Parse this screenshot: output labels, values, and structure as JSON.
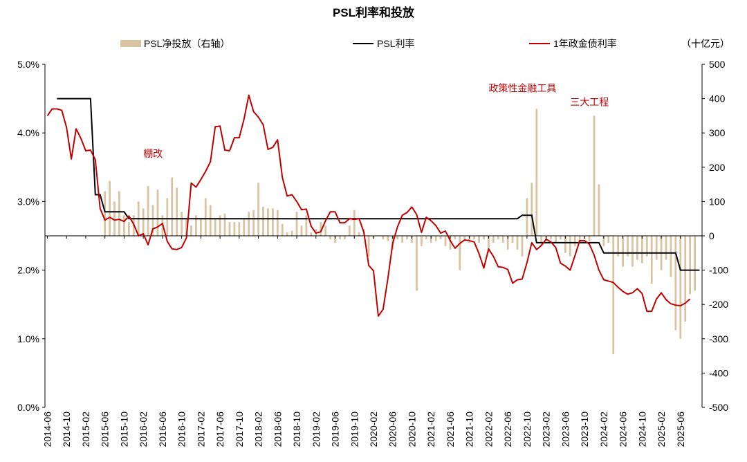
{
  "chart_data": {
    "type": "bar+line",
    "title": "PSL利率和投放",
    "unit_right": "（十亿元）",
    "legend": [
      {
        "key": "bars",
        "label": "PSL净投放（右轴）",
        "color": "#d9c3a1"
      },
      {
        "key": "psl_rate",
        "label": "PSL利率",
        "color": "#000000"
      },
      {
        "key": "bond_rate",
        "label": "1年政金债利率",
        "color": "#c00000"
      }
    ],
    "left_axis": {
      "min": 0,
      "max": 5,
      "ticks": [
        "0.0%",
        "1.0%",
        "2.0%",
        "3.0%",
        "4.0%",
        "5.0%"
      ]
    },
    "right_axis": {
      "min": -500,
      "max": 500,
      "ticks": [
        "-500",
        "-400",
        "-300",
        "-200",
        "-100",
        "0",
        "100",
        "200",
        "300",
        "400",
        "500"
      ]
    },
    "x_ticks": [
      "2014-06",
      "2014-10",
      "2015-02",
      "2015-06",
      "2015-10",
      "2016-02",
      "2016-06",
      "2016-10",
      "2017-02",
      "2017-06",
      "2017-10",
      "2018-02",
      "2018-06",
      "2018-10",
      "2019-02",
      "2019-06",
      "2019-10",
      "2020-02",
      "2020-06",
      "2020-10",
      "2021-02",
      "2021-06",
      "2021-10",
      "2022-02",
      "2022-06",
      "2022-10",
      "2023-02",
      "2023-06",
      "2023-10",
      "2024-02",
      "2024-06",
      "2024-10",
      "2025-02",
      "2025-06"
    ],
    "x_range": {
      "start": "2014-06",
      "months": 137
    },
    "psl_net_injection": [
      {
        "m": "2015-06",
        "v": 130
      },
      {
        "m": "2015-07",
        "v": 160
      },
      {
        "m": "2015-08",
        "v": 100
      },
      {
        "m": "2015-09",
        "v": 130
      },
      {
        "m": "2015-10",
        "v": 60
      },
      {
        "m": "2015-11",
        "v": 40
      },
      {
        "m": "2015-12",
        "v": 60
      },
      {
        "m": "2016-01",
        "v": 100
      },
      {
        "m": "2016-02",
        "v": 80
      },
      {
        "m": "2016-03",
        "v": 145
      },
      {
        "m": "2016-04",
        "v": 90
      },
      {
        "m": "2016-05",
        "v": 135
      },
      {
        "m": "2016-06",
        "v": 60
      },
      {
        "m": "2016-07",
        "v": 110
      },
      {
        "m": "2016-08",
        "v": 170
      },
      {
        "m": "2016-09",
        "v": 140
      },
      {
        "m": "2016-10",
        "v": 70
      },
      {
        "m": "2016-11",
        "v": 50
      },
      {
        "m": "2016-12",
        "v": 30
      },
      {
        "m": "2017-01",
        "v": 60
      },
      {
        "m": "2017-02",
        "v": 50
      },
      {
        "m": "2017-03",
        "v": 110
      },
      {
        "m": "2017-04",
        "v": 90
      },
      {
        "m": "2017-05",
        "v": 50
      },
      {
        "m": "2017-06",
        "v": 60
      },
      {
        "m": "2017-07",
        "v": 65
      },
      {
        "m": "2017-08",
        "v": 40
      },
      {
        "m": "2017-09",
        "v": 40
      },
      {
        "m": "2017-10",
        "v": 40
      },
      {
        "m": "2017-11",
        "v": 50
      },
      {
        "m": "2017-12",
        "v": 70
      },
      {
        "m": "2018-01",
        "v": 75
      },
      {
        "m": "2018-02",
        "v": 155
      },
      {
        "m": "2018-03",
        "v": 85
      },
      {
        "m": "2018-04",
        "v": 80
      },
      {
        "m": "2018-05",
        "v": 80
      },
      {
        "m": "2018-06",
        "v": 75
      },
      {
        "m": "2018-07",
        "v": 35
      },
      {
        "m": "2018-08",
        "v": 10
      },
      {
        "m": "2018-09",
        "v": 15
      },
      {
        "m": "2018-10",
        "v": 70
      },
      {
        "m": "2018-11",
        "v": 30
      },
      {
        "m": "2018-12",
        "v": 60
      },
      {
        "m": "2019-01",
        "v": 10
      },
      {
        "m": "2019-02",
        "v": 20
      },
      {
        "m": "2019-03",
        "v": 40
      },
      {
        "m": "2019-04",
        "v": 30
      },
      {
        "m": "2019-05",
        "v": -10
      },
      {
        "m": "2019-06",
        "v": -20
      },
      {
        "m": "2019-07",
        "v": -10
      },
      {
        "m": "2019-08",
        "v": -10
      },
      {
        "m": "2019-09",
        "v": 30
      },
      {
        "m": "2019-10",
        "v": 75
      },
      {
        "m": "2019-11",
        "v": 10
      },
      {
        "m": "2019-12",
        "v": 20
      },
      {
        "m": "2020-01",
        "v": -60
      },
      {
        "m": "2020-02",
        "v": -10
      },
      {
        "m": "2020-04",
        "v": -10
      },
      {
        "m": "2020-05",
        "v": -15
      },
      {
        "m": "2020-06",
        "v": -40
      },
      {
        "m": "2020-07",
        "v": -10
      },
      {
        "m": "2020-08",
        "v": -20
      },
      {
        "m": "2020-09",
        "v": -10
      },
      {
        "m": "2020-10",
        "v": -20
      },
      {
        "m": "2020-11",
        "v": -160
      },
      {
        "m": "2020-12",
        "v": -30
      },
      {
        "m": "2021-01",
        "v": -10
      },
      {
        "m": "2021-02",
        "v": -20
      },
      {
        "m": "2021-03",
        "v": -15
      },
      {
        "m": "2021-04",
        "v": -10
      },
      {
        "m": "2021-05",
        "v": -30
      },
      {
        "m": "2021-06",
        "v": -40
      },
      {
        "m": "2021-07",
        "v": -10
      },
      {
        "m": "2021-08",
        "v": -100
      },
      {
        "m": "2021-09",
        "v": -15
      },
      {
        "m": "2021-10",
        "v": -20
      },
      {
        "m": "2021-11",
        "v": -10
      },
      {
        "m": "2021-12",
        "v": -20
      },
      {
        "m": "2022-01",
        "v": -10
      },
      {
        "m": "2022-02",
        "v": -50
      },
      {
        "m": "2022-03",
        "v": -20
      },
      {
        "m": "2022-04",
        "v": -10
      },
      {
        "m": "2022-05",
        "v": -20
      },
      {
        "m": "2022-06",
        "v": -40
      },
      {
        "m": "2022-07",
        "v": -20
      },
      {
        "m": "2022-08",
        "v": -40
      },
      {
        "m": "2022-09",
        "v": -60
      },
      {
        "m": "2022-10",
        "v": 110
      },
      {
        "m": "2022-11",
        "v": 155
      },
      {
        "m": "2022-12",
        "v": 370
      },
      {
        "m": "2023-01",
        "v": -20
      },
      {
        "m": "2023-02",
        "v": -15
      },
      {
        "m": "2023-03",
        "v": -10
      },
      {
        "m": "2023-04",
        "v": -20
      },
      {
        "m": "2023-05",
        "v": -10
      },
      {
        "m": "2023-06",
        "v": -50
      },
      {
        "m": "2023-07",
        "v": -60
      },
      {
        "m": "2023-08",
        "v": -30
      },
      {
        "m": "2023-09",
        "v": -20
      },
      {
        "m": "2023-10",
        "v": -10
      },
      {
        "m": "2023-11",
        "v": -15
      },
      {
        "m": "2023-12",
        "v": 350
      },
      {
        "m": "2024-01",
        "v": 150
      },
      {
        "m": "2024-02",
        "v": -30
      },
      {
        "m": "2024-03",
        "v": -20
      },
      {
        "m": "2024-04",
        "v": -345
      },
      {
        "m": "2024-05",
        "v": -60
      },
      {
        "m": "2024-06",
        "v": -90
      },
      {
        "m": "2024-07",
        "v": -60
      },
      {
        "m": "2024-08",
        "v": -90
      },
      {
        "m": "2024-09",
        "v": -70
      },
      {
        "m": "2024-10",
        "v": -80
      },
      {
        "m": "2024-11",
        "v": -60
      },
      {
        "m": "2024-12",
        "v": -140
      },
      {
        "m": "2025-01",
        "v": -70
      },
      {
        "m": "2025-02",
        "v": -100
      },
      {
        "m": "2025-03",
        "v": -70
      },
      {
        "m": "2025-04",
        "v": -120
      },
      {
        "m": "2025-05",
        "v": -275
      },
      {
        "m": "2025-06",
        "v": -300
      },
      {
        "m": "2025-07",
        "v": -250
      },
      {
        "m": "2025-08",
        "v": -170
      },
      {
        "m": "2025-09",
        "v": -160
      }
    ],
    "psl_rate": [
      [
        "2014-08",
        4.5
      ],
      [
        "2015-03",
        4.5
      ],
      [
        "2015-04",
        3.1
      ],
      [
        "2015-05",
        3.1
      ],
      [
        "2015-06",
        2.85
      ],
      [
        "2015-10",
        2.85
      ],
      [
        "2015-11",
        2.75
      ],
      [
        "2022-08",
        2.75
      ],
      [
        "2022-09",
        2.8
      ],
      [
        "2022-11",
        2.8
      ],
      [
        "2022-12",
        2.4
      ],
      [
        "2024-01",
        2.4
      ],
      [
        "2024-02",
        2.25
      ],
      [
        "2025-05",
        2.25
      ],
      [
        "2025-06",
        2.0
      ],
      [
        "2025-10",
        2.0
      ]
    ],
    "bond_rate": [
      [
        "2014-06",
        4.25
      ],
      [
        "2014-07",
        4.35
      ],
      [
        "2014-08",
        4.35
      ],
      [
        "2014-09",
        4.33
      ],
      [
        "2014-10",
        4.08
      ],
      [
        "2014-11",
        3.62
      ],
      [
        "2014-12",
        4.06
      ],
      [
        "2015-01",
        3.92
      ],
      [
        "2015-02",
        3.74
      ],
      [
        "2015-03",
        3.75
      ],
      [
        "2015-04",
        3.61
      ],
      [
        "2015-05",
        2.9
      ],
      [
        "2015-06",
        2.73
      ],
      [
        "2015-07",
        2.77
      ],
      [
        "2015-08",
        2.73
      ],
      [
        "2015-09",
        2.74
      ],
      [
        "2015-10",
        2.71
      ],
      [
        "2015-11",
        2.79
      ],
      [
        "2015-12",
        2.67
      ],
      [
        "2016-01",
        2.5
      ],
      [
        "2016-02",
        2.53
      ],
      [
        "2016-03",
        2.37
      ],
      [
        "2016-04",
        2.6
      ],
      [
        "2016-05",
        2.63
      ],
      [
        "2016-06",
        2.68
      ],
      [
        "2016-07",
        2.42
      ],
      [
        "2016-08",
        2.31
      ],
      [
        "2016-09",
        2.3
      ],
      [
        "2016-10",
        2.33
      ],
      [
        "2016-11",
        2.47
      ],
      [
        "2016-12",
        3.27
      ],
      [
        "2017-01",
        3.21
      ],
      [
        "2017-02",
        3.32
      ],
      [
        "2017-03",
        3.44
      ],
      [
        "2017-04",
        3.58
      ],
      [
        "2017-05",
        4.09
      ],
      [
        "2017-06",
        4.1
      ],
      [
        "2017-07",
        3.75
      ],
      [
        "2017-08",
        3.74
      ],
      [
        "2017-09",
        3.93
      ],
      [
        "2017-10",
        3.93
      ],
      [
        "2017-11",
        4.2
      ],
      [
        "2017-12",
        4.55
      ],
      [
        "2018-01",
        4.31
      ],
      [
        "2018-02",
        4.23
      ],
      [
        "2018-03",
        4.12
      ],
      [
        "2018-04",
        3.76
      ],
      [
        "2018-05",
        3.79
      ],
      [
        "2018-06",
        3.9
      ],
      [
        "2018-07",
        3.35
      ],
      [
        "2018-08",
        3.08
      ],
      [
        "2018-09",
        3.1
      ],
      [
        "2018-10",
        3.0
      ],
      [
        "2018-11",
        2.88
      ],
      [
        "2018-12",
        2.89
      ],
      [
        "2019-01",
        2.64
      ],
      [
        "2019-02",
        2.54
      ],
      [
        "2019-03",
        2.56
      ],
      [
        "2019-04",
        2.72
      ],
      [
        "2019-05",
        2.85
      ],
      [
        "2019-06",
        2.85
      ],
      [
        "2019-07",
        2.69
      ],
      [
        "2019-08",
        2.69
      ],
      [
        "2019-09",
        2.75
      ],
      [
        "2019-10",
        2.74
      ],
      [
        "2019-11",
        2.75
      ],
      [
        "2019-12",
        2.55
      ],
      [
        "2020-01",
        2.07
      ],
      [
        "2020-02",
        1.99
      ],
      [
        "2020-03",
        1.33
      ],
      [
        "2020-04",
        1.43
      ],
      [
        "2020-05",
        1.88
      ],
      [
        "2020-06",
        2.39
      ],
      [
        "2020-07",
        2.63
      ],
      [
        "2020-08",
        2.8
      ],
      [
        "2020-09",
        2.84
      ],
      [
        "2020-10",
        2.92
      ],
      [
        "2020-11",
        2.81
      ],
      [
        "2020-12",
        2.55
      ],
      [
        "2021-01",
        2.77
      ],
      [
        "2021-02",
        2.72
      ],
      [
        "2021-03",
        2.65
      ],
      [
        "2021-04",
        2.54
      ],
      [
        "2021-05",
        2.57
      ],
      [
        "2021-06",
        2.43
      ],
      [
        "2021-07",
        2.32
      ],
      [
        "2021-08",
        2.39
      ],
      [
        "2021-09",
        2.44
      ],
      [
        "2021-10",
        2.43
      ],
      [
        "2021-11",
        2.41
      ],
      [
        "2021-12",
        2.24
      ],
      [
        "2022-01",
        2.03
      ],
      [
        "2022-02",
        2.31
      ],
      [
        "2022-03",
        2.2
      ],
      [
        "2022-04",
        2.05
      ],
      [
        "2022-05",
        2.04
      ],
      [
        "2022-06",
        2.01
      ],
      [
        "2022-07",
        1.81
      ],
      [
        "2022-08",
        1.86
      ],
      [
        "2022-09",
        1.87
      ],
      [
        "2022-10",
        2.11
      ],
      [
        "2022-11",
        2.4
      ],
      [
        "2022-12",
        2.3
      ],
      [
        "2023-01",
        2.36
      ],
      [
        "2023-02",
        2.45
      ],
      [
        "2023-03",
        2.41
      ],
      [
        "2023-04",
        2.33
      ],
      [
        "2023-05",
        2.1
      ],
      [
        "2023-06",
        2.06
      ],
      [
        "2023-07",
        2.0
      ],
      [
        "2023-08",
        2.21
      ],
      [
        "2023-09",
        2.43
      ],
      [
        "2023-10",
        2.43
      ],
      [
        "2023-11",
        2.38
      ],
      [
        "2023-12",
        2.22
      ],
      [
        "2024-01",
        2.0
      ],
      [
        "2024-02",
        1.86
      ],
      [
        "2024-03",
        1.84
      ],
      [
        "2024-04",
        1.82
      ],
      [
        "2024-05",
        1.75
      ],
      [
        "2024-06",
        1.69
      ],
      [
        "2024-07",
        1.65
      ],
      [
        "2024-08",
        1.67
      ],
      [
        "2024-09",
        1.73
      ],
      [
        "2024-10",
        1.66
      ],
      [
        "2024-11",
        1.4
      ],
      [
        "2024-12",
        1.4
      ],
      [
        "2025-01",
        1.58
      ],
      [
        "2025-02",
        1.67
      ],
      [
        "2025-03",
        1.57
      ],
      [
        "2025-04",
        1.51
      ],
      [
        "2025-05",
        1.49
      ],
      [
        "2025-06",
        1.48
      ],
      [
        "2025-07",
        1.52
      ],
      [
        "2025-08",
        1.58
      ]
    ],
    "annotations": [
      {
        "text": "棚改",
        "m": "2016-02",
        "y": 3.65
      },
      {
        "text": "政策性金融工具",
        "m": "2022-02",
        "y": 4.6
      },
      {
        "text": "三大工程",
        "m": "2023-07",
        "y": 4.4
      }
    ]
  }
}
